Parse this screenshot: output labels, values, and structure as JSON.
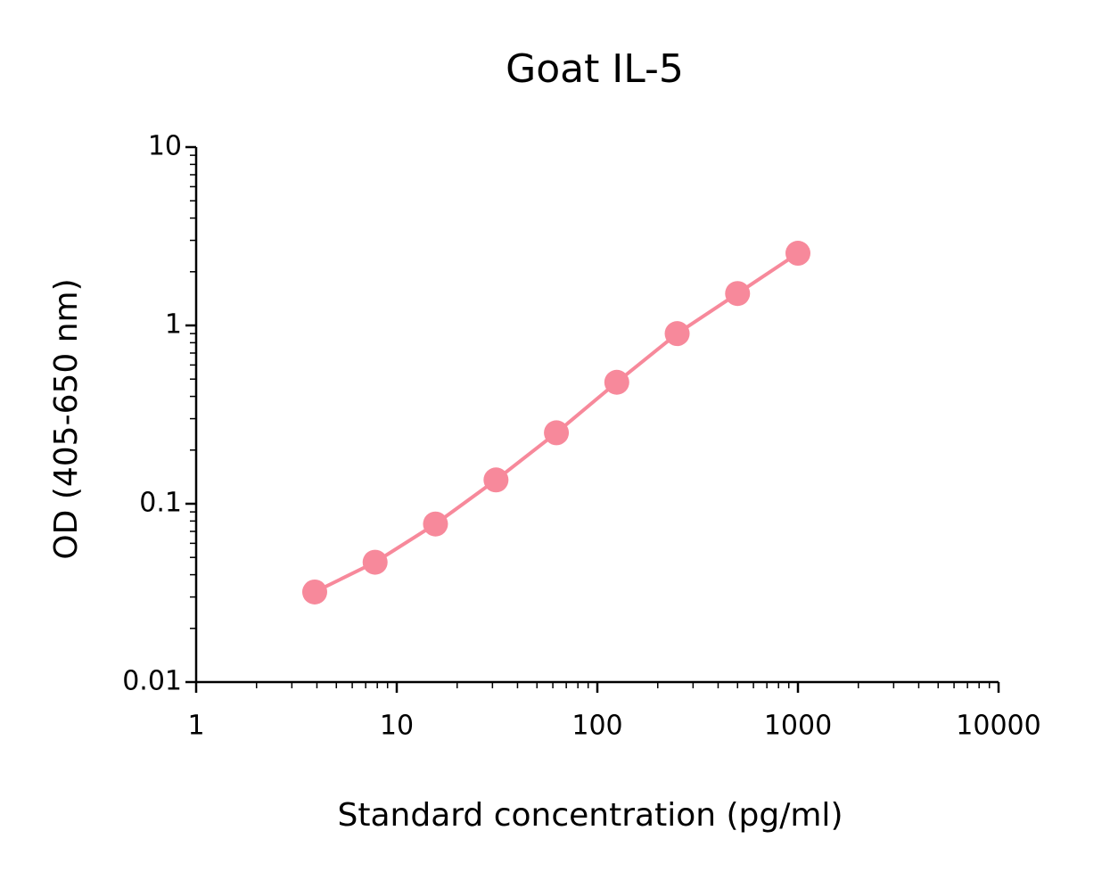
{
  "chart_data": {
    "type": "line",
    "title": "Goat IL-5",
    "x_label": "Standard concentration (pg/ml)",
    "y_label": "OD (405-650 nm)",
    "x": [
      3.9,
      7.8,
      15.6,
      31.25,
      62.5,
      125,
      250,
      500,
      1000
    ],
    "series": [
      {
        "name": "Goat IL-5",
        "color": "#f7899b",
        "values": [
          0.032,
          0.047,
          0.077,
          0.136,
          0.25,
          0.48,
          0.9,
          1.51,
          2.54
        ]
      }
    ],
    "xlim": [
      1,
      10000
    ],
    "ylim": [
      0.01,
      10
    ],
    "xticks": [
      1,
      10,
      100,
      1000,
      10000
    ],
    "yticks": [
      0.01,
      0.1,
      1,
      10
    ],
    "xscale": "log",
    "yscale": "log",
    "grid": false
  }
}
